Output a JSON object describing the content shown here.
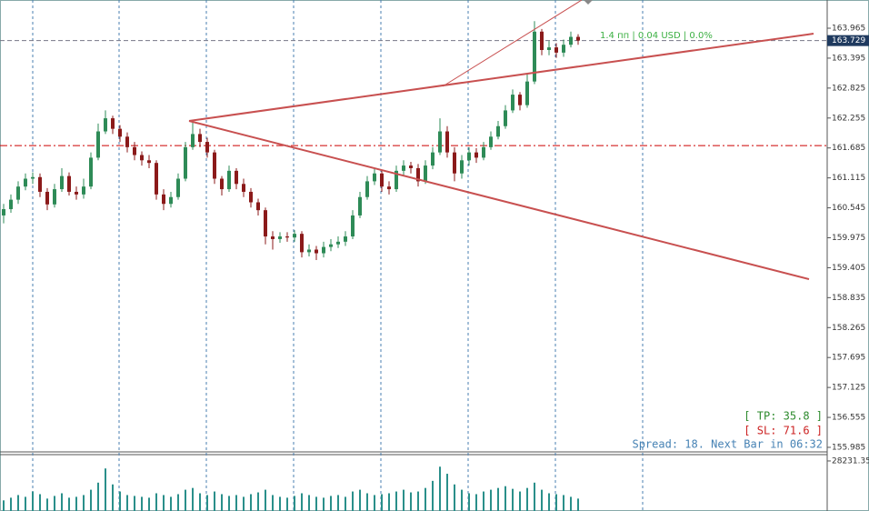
{
  "chart_data": {
    "type": "candlestick",
    "up_color": "#2e8b57",
    "down_color": "#8b1a1a",
    "open": [
      160.4,
      160.52,
      160.7,
      160.95,
      161.1,
      161.13,
      160.85,
      160.61,
      160.9,
      161.15,
      160.85,
      160.8,
      160.95,
      161.5,
      162.0,
      162.25,
      162.05,
      161.9,
      161.7,
      161.55,
      161.45,
      161.4,
      160.8,
      160.62,
      160.75,
      161.1,
      161.7,
      161.95,
      161.8,
      161.6,
      161.1,
      160.9,
      161.25,
      161.0,
      160.85,
      160.65,
      160.5,
      160.0,
      159.95,
      160.0,
      159.98,
      160.05,
      159.7,
      159.75,
      159.68,
      159.8,
      159.85,
      159.9,
      160.0,
      160.4,
      160.75,
      161.05,
      161.2,
      160.95,
      160.9,
      161.25,
      161.35,
      161.3,
      161.05,
      161.35,
      161.6,
      162.0,
      161.6,
      161.2,
      161.45,
      161.6,
      161.5,
      161.7,
      161.9,
      162.1,
      162.4,
      162.7,
      162.5,
      162.95,
      163.9,
      163.55,
      163.6,
      163.5,
      163.65,
      163.8
    ],
    "high": [
      160.62,
      160.8,
      161.05,
      161.2,
      161.22,
      161.2,
      160.92,
      161.0,
      161.3,
      161.22,
      160.95,
      161.1,
      161.6,
      162.15,
      162.4,
      162.3,
      162.12,
      161.98,
      161.8,
      161.62,
      161.55,
      161.45,
      160.9,
      160.85,
      161.2,
      161.8,
      162.2,
      162.05,
      161.88,
      161.65,
      161.15,
      161.35,
      161.3,
      161.1,
      160.92,
      160.72,
      160.55,
      160.1,
      160.08,
      160.08,
      160.12,
      160.1,
      159.85,
      159.82,
      159.9,
      159.95,
      160.0,
      160.1,
      160.5,
      160.85,
      161.15,
      161.3,
      161.25,
      161.05,
      161.35,
      161.45,
      161.42,
      161.38,
      161.45,
      161.7,
      162.25,
      162.1,
      161.7,
      161.55,
      161.7,
      161.68,
      161.8,
      162.0,
      162.2,
      162.5,
      162.8,
      162.75,
      163.1,
      164.1,
      163.95,
      163.72,
      163.68,
      163.75,
      163.9,
      163.85
    ],
    "low": [
      160.25,
      160.45,
      160.62,
      160.88,
      161.0,
      160.75,
      160.5,
      160.55,
      160.85,
      160.78,
      160.7,
      160.72,
      160.9,
      161.45,
      161.95,
      161.95,
      161.8,
      161.6,
      161.45,
      161.35,
      161.3,
      160.7,
      160.5,
      160.55,
      160.7,
      161.05,
      161.65,
      161.7,
      161.5,
      161.0,
      160.78,
      160.85,
      160.9,
      160.75,
      160.55,
      160.4,
      159.85,
      159.75,
      159.88,
      159.9,
      159.9,
      159.6,
      159.62,
      159.55,
      159.6,
      159.72,
      159.78,
      159.82,
      159.95,
      160.35,
      160.7,
      160.98,
      160.85,
      160.8,
      160.85,
      161.15,
      161.2,
      160.95,
      161.0,
      161.28,
      161.55,
      161.5,
      161.05,
      161.1,
      161.35,
      161.4,
      161.45,
      161.65,
      161.85,
      162.05,
      162.35,
      162.4,
      162.45,
      162.9,
      163.45,
      163.45,
      163.4,
      163.42,
      163.6,
      163.65
    ],
    "close": [
      160.52,
      160.7,
      160.95,
      161.1,
      161.13,
      160.85,
      160.61,
      160.9,
      161.15,
      160.85,
      160.8,
      160.95,
      161.5,
      162.0,
      162.25,
      162.05,
      161.9,
      161.7,
      161.55,
      161.45,
      161.4,
      160.8,
      160.62,
      160.75,
      161.1,
      161.7,
      161.95,
      161.8,
      161.6,
      161.1,
      160.9,
      161.25,
      161.0,
      160.85,
      160.65,
      160.5,
      160.0,
      159.95,
      160.0,
      159.98,
      160.05,
      159.7,
      159.75,
      159.68,
      159.8,
      159.85,
      159.9,
      160.0,
      160.4,
      160.75,
      161.05,
      161.2,
      160.95,
      160.9,
      161.25,
      161.35,
      161.3,
      161.05,
      161.35,
      161.6,
      162.0,
      161.6,
      161.2,
      161.45,
      161.6,
      161.5,
      161.7,
      161.9,
      162.1,
      162.4,
      162.7,
      162.5,
      162.95,
      163.9,
      163.55,
      163.6,
      163.5,
      163.65,
      163.8,
      163.73
    ],
    "ylim": [
      155.898,
      164.502
    ],
    "yticks": [
      {
        "value": 163.965,
        "label": "163.965"
      },
      163.395,
      {
        "value": 162.825,
        "label": "162.825"
      },
      162.255,
      161.685,
      161.115,
      160.545,
      159.975,
      159.405,
      {
        "value": 158.835,
        "label": "158.835"
      },
      158.265,
      157.695,
      157.125,
      156.555,
      155.985
    ],
    "current_price": 163.729,
    "level_line": {
      "value": 161.73,
      "color": "#cc0000"
    },
    "volume": [
      6000,
      7500,
      9000,
      8000,
      11000,
      9500,
      7000,
      8500,
      10000,
      7500,
      8000,
      9000,
      12000,
      16000,
      24000,
      15000,
      11000,
      9000,
      8500,
      8000,
      7500,
      10000,
      9000,
      8000,
      9500,
      12000,
      13000,
      10000,
      9000,
      11000,
      9500,
      8500,
      9000,
      8000,
      9500,
      10500,
      12000,
      9000,
      8000,
      7500,
      8500,
      10000,
      9000,
      8000,
      7500,
      8500,
      9000,
      8000,
      11000,
      12000,
      10000,
      9000,
      9500,
      10000,
      11000,
      12000,
      10500,
      11000,
      13000,
      17000,
      25000,
      21000,
      15000,
      12000,
      10000,
      9500,
      11000,
      12000,
      13000,
      14000,
      12500,
      11000,
      13000,
      16000,
      12000,
      10000,
      9500,
      9000,
      8000,
      7000
    ],
    "volume_color": "#2a8f8a",
    "volume_ylim": [
      0,
      31800
    ],
    "volume_yticks": [
      28231.35
    ],
    "profit_label": "1.4 пп | 0.04 USD | 0.0%",
    "tp_label": "[ TP: 35.8 ]",
    "sl_label": "[ SL: 71.6 ]",
    "status_label": "Spread: 18. Next Bar in 06:32"
  }
}
